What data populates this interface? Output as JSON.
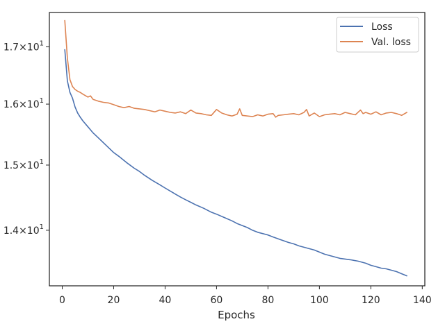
{
  "chart_data": {
    "type": "line",
    "title": "",
    "xlabel": "Epochs",
    "ylabel": "",
    "xlim": [
      -5,
      141
    ],
    "ylim": [
      13.2,
      17.63
    ],
    "yscale": "log",
    "grid": false,
    "legend_position": "top-right",
    "x_ticks": [
      {
        "value": 0,
        "label": "0"
      },
      {
        "value": 20,
        "label": "20"
      },
      {
        "value": 40,
        "label": "40"
      },
      {
        "value": 60,
        "label": "60"
      },
      {
        "value": 80,
        "label": "80"
      },
      {
        "value": 100,
        "label": "100"
      },
      {
        "value": 120,
        "label": "120"
      },
      {
        "value": 140,
        "label": "140"
      }
    ],
    "y_ticks": [
      {
        "value": 14,
        "mantissa": "1.4",
        "times": "×",
        "base": "10",
        "exponent": "1"
      },
      {
        "value": 15,
        "mantissa": "1.5",
        "times": "×",
        "base": "10",
        "exponent": "1"
      },
      {
        "value": 16,
        "mantissa": "1.6",
        "times": "×",
        "base": "10",
        "exponent": "1"
      },
      {
        "value": 17,
        "mantissa": "1.7",
        "times": "×",
        "base": "10",
        "exponent": "1"
      }
    ],
    "series": [
      {
        "name": "Loss",
        "color": "#4c72b0",
        "x": [
          1,
          2,
          3,
          4,
          5,
          6,
          7,
          8,
          10,
          12,
          14,
          16,
          18,
          20,
          22,
          25,
          28,
          30,
          32,
          35,
          38,
          40,
          43,
          46,
          48,
          50,
          52,
          55,
          58,
          60,
          63,
          66,
          68,
          70,
          72,
          74,
          76,
          80,
          82,
          85,
          88,
          90,
          92,
          95,
          98,
          100,
          102,
          105,
          108,
          110,
          112,
          115,
          118,
          120,
          122,
          124,
          126,
          128,
          130,
          132,
          134
        ],
        "y": [
          16.95,
          16.4,
          16.2,
          16.1,
          15.95,
          15.85,
          15.78,
          15.72,
          15.62,
          15.52,
          15.44,
          15.36,
          15.28,
          15.2,
          15.14,
          15.04,
          14.95,
          14.9,
          14.84,
          14.76,
          14.69,
          14.64,
          14.57,
          14.5,
          14.46,
          14.42,
          14.38,
          14.33,
          14.27,
          14.24,
          14.19,
          14.14,
          14.1,
          14.07,
          14.04,
          14.0,
          13.97,
          13.93,
          13.9,
          13.86,
          13.82,
          13.8,
          13.77,
          13.74,
          13.71,
          13.68,
          13.65,
          13.62,
          13.59,
          13.58,
          13.57,
          13.55,
          13.52,
          13.49,
          13.47,
          13.45,
          13.44,
          13.42,
          13.4,
          13.37,
          13.34
        ]
      },
      {
        "name": "Val. loss",
        "color": "#dd8452",
        "x": [
          1,
          2,
          3,
          4,
          5,
          6,
          7,
          8,
          10,
          11,
          12,
          14,
          16,
          18,
          20,
          22,
          24,
          26,
          28,
          30,
          32,
          34,
          36,
          38,
          40,
          42,
          44,
          46,
          48,
          50,
          52,
          54,
          56,
          58,
          60,
          62,
          64,
          66,
          68,
          69,
          70,
          72,
          74,
          76,
          78,
          80,
          82,
          83,
          84,
          86,
          88,
          90,
          92,
          94,
          95,
          96,
          98,
          100,
          102,
          104,
          106,
          108,
          110,
          112,
          114,
          116,
          117,
          118,
          120,
          122,
          124,
          126,
          128,
          130,
          132,
          134
        ],
        "y": [
          17.48,
          16.8,
          16.42,
          16.3,
          16.25,
          16.22,
          16.2,
          16.17,
          16.12,
          16.14,
          16.08,
          16.05,
          16.03,
          16.02,
          15.99,
          15.96,
          15.94,
          15.96,
          15.93,
          15.92,
          15.91,
          15.89,
          15.87,
          15.9,
          15.88,
          15.86,
          15.85,
          15.87,
          15.84,
          15.9,
          15.85,
          15.84,
          15.82,
          15.81,
          15.91,
          15.85,
          15.82,
          15.8,
          15.83,
          15.92,
          15.81,
          15.8,
          15.79,
          15.82,
          15.8,
          15.83,
          15.84,
          15.78,
          15.81,
          15.82,
          15.83,
          15.84,
          15.82,
          15.86,
          15.91,
          15.8,
          15.85,
          15.79,
          15.82,
          15.83,
          15.84,
          15.82,
          15.86,
          15.84,
          15.82,
          15.9,
          15.84,
          15.86,
          15.83,
          15.87,
          15.82,
          15.85,
          15.86,
          15.84,
          15.81,
          15.86
        ]
      }
    ]
  }
}
